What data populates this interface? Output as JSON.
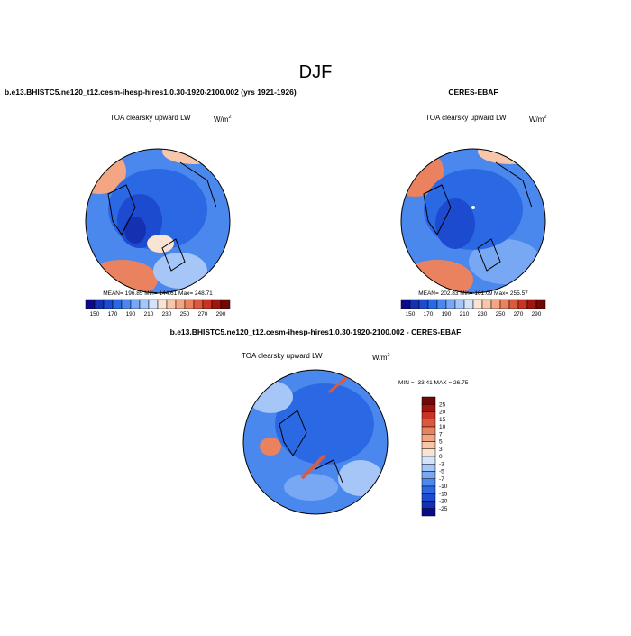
{
  "title": "DJF",
  "panels": [
    {
      "header": "b.e13.BHISTC5.ne120_t12.cesm-ihesp-hires1.0.30-1920-2100.002 (yrs 1921-1926)",
      "variable": "TOA clearsky upward LW",
      "units": {
        "base": "W/m",
        "exp": "2"
      },
      "stats": "MEAN= 196.85  Min= 144.61  Max= 248.71",
      "colorbar": {
        "labels": [
          "150",
          "170",
          "190",
          "210",
          "230",
          "250",
          "270",
          "290"
        ],
        "colors": [
          "#0c0a8a",
          "#1530b0",
          "#1d4bd0",
          "#2b68e4",
          "#4a88ee",
          "#78a8f4",
          "#a6c6f8",
          "#d3e3f9",
          "#f9e3d3",
          "#f8c7ab",
          "#f3a584",
          "#ea8260",
          "#db5a3d",
          "#c73324",
          "#9f1510",
          "#700806"
        ]
      }
    },
    {
      "header": "CERES-EBAF",
      "variable": "TOA clearsky upward LW",
      "units": {
        "base": "W/m",
        "exp": "2"
      },
      "stats": "MEAN= 202.83  Min= 161.09  Max= 255.57",
      "colorbar": {
        "labels": [
          "150",
          "170",
          "190",
          "210",
          "230",
          "250",
          "270",
          "290"
        ],
        "colors": [
          "#0c0a8a",
          "#1530b0",
          "#1d4bd0",
          "#2b68e4",
          "#4a88ee",
          "#78a8f4",
          "#a6c6f8",
          "#d3e3f9",
          "#f9e3d3",
          "#f8c7ab",
          "#f3a584",
          "#ea8260",
          "#db5a3d",
          "#c73324",
          "#9f1510",
          "#700806"
        ]
      }
    },
    {
      "header": "b.e13.BHISTC5.ne120_t12.cesm-ihesp-hires1.0.30-1920-2100.002 - CERES-EBAF",
      "variable": "TOA clearsky upward LW",
      "units": {
        "base": "W/m",
        "exp": "2"
      },
      "stats": "MIN = -33.41 MAX =  26.75",
      "colorbar": {
        "labels": [
          "25",
          "20",
          "15",
          "10",
          "7",
          "5",
          "3",
          "0",
          "-3",
          "-5",
          "-7",
          "-10",
          "-15",
          "-20",
          "-25"
        ],
        "colors": [
          "#700806",
          "#9f1510",
          "#c73324",
          "#db5a3d",
          "#ea8260",
          "#f3a584",
          "#f8c7ab",
          "#f9e3d3",
          "#d3e3f9",
          "#a6c6f8",
          "#78a8f4",
          "#4a88ee",
          "#2b68e4",
          "#1d4bd0",
          "#1530b0",
          "#0c0a8a"
        ]
      }
    }
  ]
}
